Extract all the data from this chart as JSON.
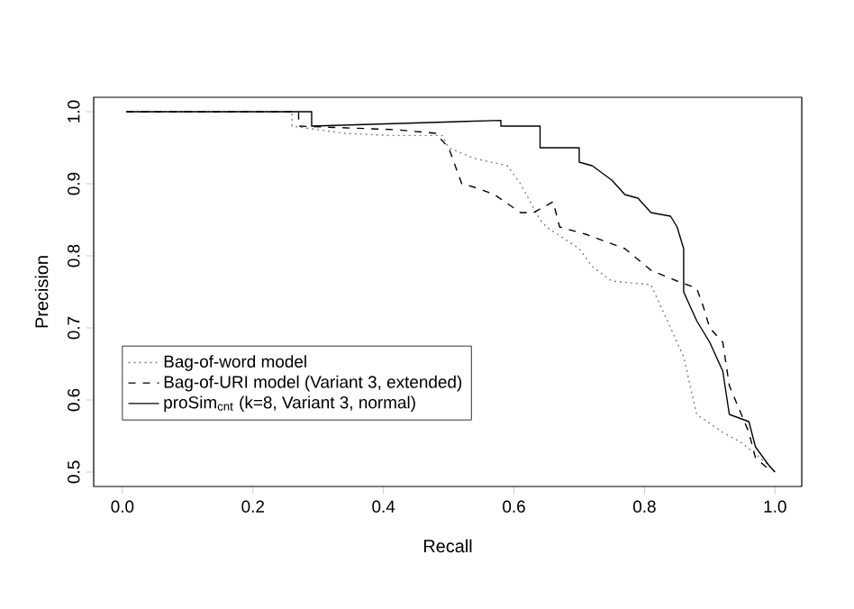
{
  "chart_data": {
    "type": "line",
    "xlabel": "Recall",
    "ylabel": "Precision",
    "xlim": [
      -0.044,
      1.041
    ],
    "ylim": [
      0.48,
      1.02
    ],
    "xticks": [
      {
        "value": 0,
        "label": "0.0"
      },
      {
        "value": 0.2,
        "label": "0.2"
      },
      {
        "value": 0.4,
        "label": "0.4"
      },
      {
        "value": 0.6,
        "label": "0.6"
      },
      {
        "value": 0.8,
        "label": "0.8"
      },
      {
        "value": 1,
        "label": "1.0"
      }
    ],
    "yticks": [
      0.5,
      0.6,
      0.7,
      0.8,
      0.9,
      {
        "value": 1,
        "label": "1.0"
      }
    ],
    "legend": "bottom left",
    "series": [
      {
        "name": "Bag-of-word model",
        "color": "#808080",
        "line_style": "dotted",
        "x": [
          0.006,
          0.26,
          0.26,
          0.34,
          0.41,
          0.49,
          0.5,
          0.54,
          0.59,
          0.61,
          0.64,
          0.65,
          0.7,
          0.72,
          0.75,
          0.81,
          0.83,
          0.86,
          0.88,
          0.92,
          0.95,
          0.99,
          1.0
        ],
        "values": [
          1.0,
          1.0,
          0.98,
          0.97,
          0.967,
          0.967,
          0.95,
          0.935,
          0.925,
          0.9,
          0.85,
          0.84,
          0.81,
          0.785,
          0.765,
          0.76,
          0.72,
          0.66,
          0.58,
          0.555,
          0.54,
          0.51,
          0.5
        ]
      },
      {
        "name": "Bag-of-URI model (Variant 3, extended)",
        "color": "#000000",
        "line_style": "dashed",
        "x": [
          0.006,
          0.27,
          0.27,
          0.42,
          0.48,
          0.5,
          0.52,
          0.54,
          0.57,
          0.61,
          0.63,
          0.66,
          0.67,
          0.71,
          0.77,
          0.81,
          0.85,
          0.88,
          0.89,
          0.9,
          0.92,
          0.93,
          0.96,
          0.97,
          0.995
        ],
        "values": [
          1.0,
          1.0,
          0.98,
          0.975,
          0.97,
          0.95,
          0.9,
          0.895,
          0.885,
          0.86,
          0.86,
          0.875,
          0.84,
          0.83,
          0.81,
          0.78,
          0.765,
          0.755,
          0.73,
          0.7,
          0.68,
          0.62,
          0.555,
          0.52,
          0.5
        ]
      },
      {
        "name": "proSim$_{cnt}$ (k=8, Variant 3, normal)",
        "color": "#000000",
        "line_style": "solid",
        "x": [
          0.006,
          0.29,
          0.29,
          0.58,
          0.58,
          0.64,
          0.64,
          0.7,
          0.7,
          0.72,
          0.75,
          0.77,
          0.79,
          0.81,
          0.84,
          0.85,
          0.86,
          0.86,
          0.88,
          0.9,
          0.92,
          0.93,
          0.96,
          0.97,
          0.99,
          1.0
        ],
        "values": [
          1.0,
          1.0,
          0.98,
          0.988,
          0.98,
          0.98,
          0.95,
          0.95,
          0.93,
          0.925,
          0.905,
          0.885,
          0.88,
          0.86,
          0.855,
          0.84,
          0.81,
          0.75,
          0.71,
          0.68,
          0.64,
          0.58,
          0.57,
          0.535,
          0.51,
          0.5
        ]
      }
    ]
  }
}
